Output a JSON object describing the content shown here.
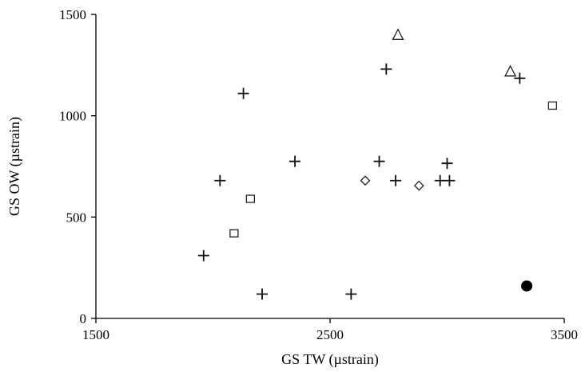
{
  "chart_data": {
    "type": "scatter",
    "title": "",
    "xlabel": "GS TW (µstrain)",
    "ylabel": "GS OW (µstrain)",
    "xlim": [
      1500,
      3500
    ],
    "ylim": [
      0,
      1500
    ],
    "x_ticks": [
      "1500",
      "2500",
      "3500"
    ],
    "y_ticks": [
      "0",
      "500",
      "1000",
      "1500"
    ],
    "grid": false,
    "legend": "none",
    "series": [
      {
        "marker": "plus",
        "points": [
          {
            "x": 1960,
            "y": 310
          },
          {
            "x": 2030,
            "y": 680
          },
          {
            "x": 2130,
            "y": 1110
          },
          {
            "x": 2210,
            "y": 120
          },
          {
            "x": 2350,
            "y": 775
          },
          {
            "x": 2590,
            "y": 120
          },
          {
            "x": 2710,
            "y": 775
          },
          {
            "x": 2740,
            "y": 1230
          },
          {
            "x": 2780,
            "y": 680
          },
          {
            "x": 2970,
            "y": 680
          },
          {
            "x": 3000,
            "y": 765
          },
          {
            "x": 3010,
            "y": 680
          },
          {
            "x": 3310,
            "y": 1185
          }
        ]
      },
      {
        "marker": "square",
        "points": [
          {
            "x": 2090,
            "y": 420
          },
          {
            "x": 2160,
            "y": 590
          },
          {
            "x": 3450,
            "y": 1050
          }
        ]
      },
      {
        "marker": "diamond",
        "points": [
          {
            "x": 2650,
            "y": 680
          },
          {
            "x": 2880,
            "y": 655
          }
        ]
      },
      {
        "marker": "triangle",
        "points": [
          {
            "x": 2790,
            "y": 1400
          },
          {
            "x": 3270,
            "y": 1220
          }
        ]
      },
      {
        "marker": "circle",
        "points": [
          {
            "x": 3340,
            "y": 160
          }
        ]
      }
    ]
  }
}
